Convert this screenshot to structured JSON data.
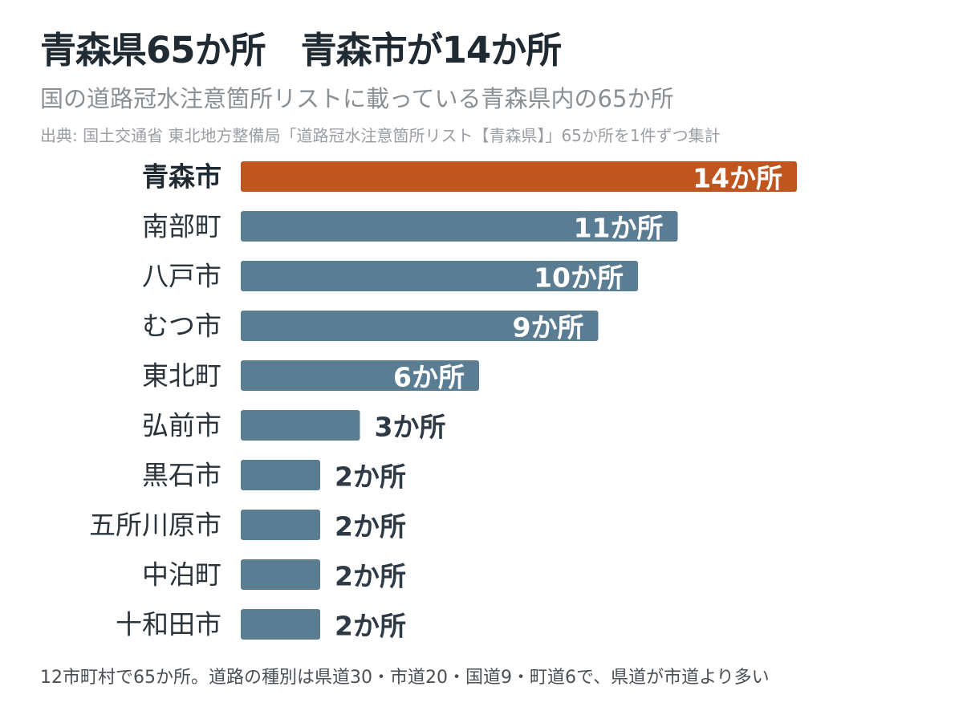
{
  "title": "青森県65か所　青森市が14か所",
  "subtitle": "国の道路冠水注意箇所リストに載っている青森県内の65か所",
  "source": "出典: 国土交通省 東北地方整備局「道路冠水注意箇所リスト【青森県】」65か所を1件ずつ集計",
  "footnote": "12市町村で65か所。道路の種別は県道30・市道20・国道9・町道6で、県道が市道より多い",
  "colors": {
    "highlight": "#c0561f",
    "bar": "#5b7d93",
    "label_inside": "#ffffff",
    "label_outside": "#2e3a45"
  },
  "chart_data": {
    "type": "bar",
    "orientation": "horizontal",
    "unit_suffix": "か所",
    "categories": [
      "青森市",
      "南部町",
      "八戸市",
      "むつ市",
      "東北町",
      "弘前市",
      "黒石市",
      "五所川原市",
      "中泊町",
      "十和田市"
    ],
    "values": [
      14,
      11,
      10,
      9,
      6,
      3,
      2,
      2,
      2,
      2
    ],
    "value_labels": [
      "14か所",
      "11か所",
      "10か所",
      "9か所",
      "6か所",
      "3か所",
      "2か所",
      "2か所",
      "2か所",
      "2か所"
    ],
    "highlight_index": 0,
    "xlim": [
      0,
      14
    ],
    "grid": false,
    "legend": "none"
  }
}
